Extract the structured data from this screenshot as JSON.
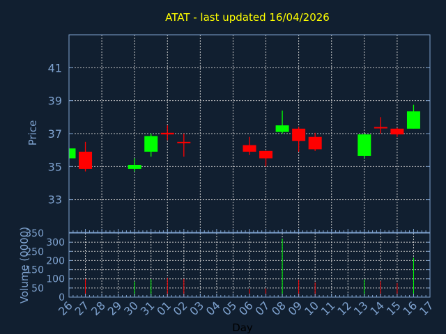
{
  "chart_data": [
    {
      "type": "candlestick",
      "title": "ATAT - last updated 16/04/2026",
      "xlabel": "",
      "ylabel": "Price",
      "ylim": [
        31,
        43
      ],
      "yticks": [
        33,
        35,
        37,
        39,
        41
      ],
      "grid": true,
      "colors": {
        "up": "#00ff00",
        "down": "#ff0000",
        "background": "#111f30",
        "axis": "#7fa3d0",
        "title": "#ffff00"
      },
      "candles": [
        {
          "day": "26",
          "open": 35.5,
          "high": 36.1,
          "low": 35.5,
          "close": 36.1
        },
        {
          "day": "27",
          "open": 35.9,
          "high": 36.5,
          "low": 34.7,
          "close": 34.85
        },
        {
          "day": "30",
          "open": 34.85,
          "high": 35.5,
          "low": 34.7,
          "close": 35.1
        },
        {
          "day": "31",
          "open": 35.9,
          "high": 37.0,
          "low": 35.6,
          "close": 36.85
        },
        {
          "day": "01",
          "open": 37.05,
          "high": 37.5,
          "low": 36.6,
          "close": 36.95
        },
        {
          "day": "02",
          "open": 36.5,
          "high": 37.0,
          "low": 35.6,
          "close": 36.45
        },
        {
          "day": "06",
          "open": 36.3,
          "high": 36.8,
          "low": 35.7,
          "close": 35.9
        },
        {
          "day": "07",
          "open": 35.95,
          "high": 35.95,
          "low": 35.0,
          "close": 35.5
        },
        {
          "day": "08",
          "open": 37.1,
          "high": 38.4,
          "low": 37.0,
          "close": 37.5
        },
        {
          "day": "09",
          "open": 37.3,
          "high": 37.4,
          "low": 35.9,
          "close": 36.55
        },
        {
          "day": "10",
          "open": 36.8,
          "high": 37.05,
          "low": 35.95,
          "close": 36.05
        },
        {
          "day": "13",
          "open": 35.65,
          "high": 37.0,
          "low": 35.5,
          "close": 36.95
        },
        {
          "day": "14",
          "open": 37.4,
          "high": 38.0,
          "low": 37.0,
          "close": 37.35
        },
        {
          "day": "15",
          "open": 37.3,
          "high": 37.35,
          "low": 36.8,
          "close": 36.95
        },
        {
          "day": "16",
          "open": 37.3,
          "high": 38.75,
          "low": 37.3,
          "close": 38.35
        }
      ]
    },
    {
      "type": "bar",
      "xlabel": "Day",
      "ylabel": "Volume (0000)",
      "ylim": [
        0,
        350
      ],
      "yticks": [
        0,
        50,
        100,
        150,
        200,
        250,
        300,
        350
      ],
      "categories": [
        "26",
        "27",
        "28",
        "29",
        "30",
        "31",
        "01",
        "02",
        "03",
        "04",
        "05",
        "06",
        "07",
        "08",
        "09",
        "10",
        "11",
        "12",
        "13",
        "14",
        "15",
        "16",
        "17"
      ],
      "bars": [
        {
          "day": "27",
          "value": 100,
          "direction": "down"
        },
        {
          "day": "30",
          "value": 85,
          "direction": "up"
        },
        {
          "day": "31",
          "value": 98,
          "direction": "up"
        },
        {
          "day": "01",
          "value": 105,
          "direction": "down"
        },
        {
          "day": "02",
          "value": 100,
          "direction": "down"
        },
        {
          "day": "06",
          "value": 45,
          "direction": "down"
        },
        {
          "day": "07",
          "value": 47,
          "direction": "down"
        },
        {
          "day": "08",
          "value": 320,
          "direction": "up"
        },
        {
          "day": "09",
          "value": 95,
          "direction": "down"
        },
        {
          "day": "10",
          "value": 80,
          "direction": "down"
        },
        {
          "day": "13",
          "value": 97,
          "direction": "up"
        },
        {
          "day": "14",
          "value": 87,
          "direction": "down"
        },
        {
          "day": "15",
          "value": 77,
          "direction": "down"
        },
        {
          "day": "16",
          "value": 215,
          "direction": "up"
        }
      ]
    }
  ]
}
